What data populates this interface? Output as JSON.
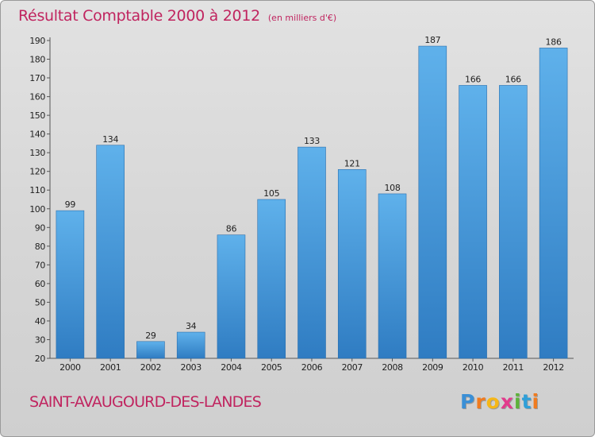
{
  "title": "Résultat Comptable 2000 à 2012",
  "unit": "(en milliers d'€)",
  "commune": "SAINT-AVAUGOURD-DES-LANDES",
  "logo": {
    "letters": [
      "P",
      "r",
      "o",
      "x",
      "i",
      "t",
      "i"
    ],
    "colors": [
      "#3a8fd6",
      "#f07b1f",
      "#f5b718",
      "#e23a8c",
      "#5db23a",
      "#2f9fd8",
      "#f07b1f"
    ]
  },
  "colors": {
    "bar": "#4a9fe0",
    "bar_top": "#5fb1eb",
    "bar_bottom": "#2f7cc2",
    "title": "#c0245f"
  },
  "chart_data": {
    "type": "bar",
    "categories": [
      "2000",
      "2001",
      "2002",
      "2003",
      "2004",
      "2005",
      "2006",
      "2007",
      "2008",
      "2009",
      "2010",
      "2011",
      "2012"
    ],
    "values": [
      99,
      134,
      29,
      34,
      86,
      105,
      133,
      121,
      108,
      187,
      166,
      166,
      186
    ],
    "ylim": [
      20,
      190
    ],
    "yticks": [
      20,
      30,
      40,
      50,
      60,
      70,
      80,
      90,
      100,
      110,
      120,
      130,
      140,
      150,
      160,
      170,
      180,
      190
    ],
    "grid": false
  }
}
